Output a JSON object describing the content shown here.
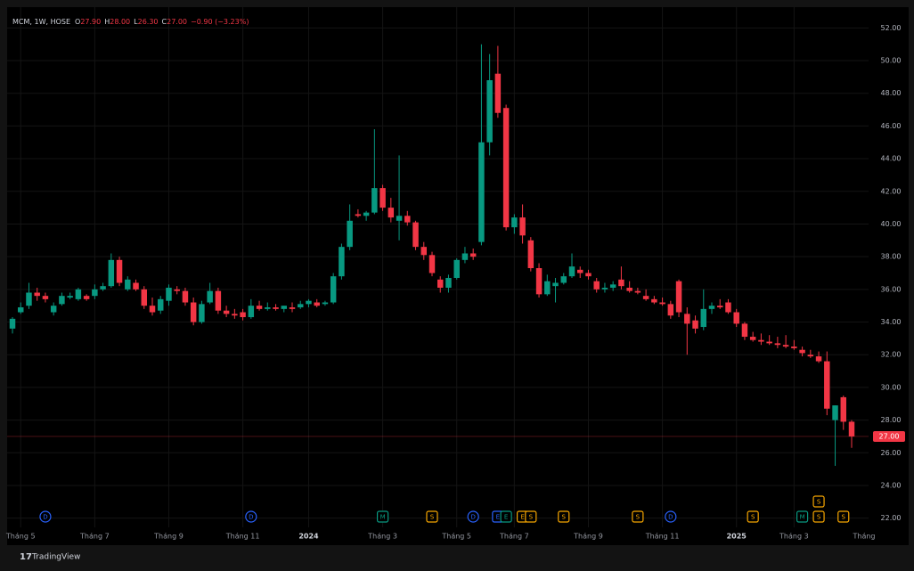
{
  "chart_data": {
    "type": "candlestick",
    "symbol": "MCM, 1W, HOSE",
    "legend_items": [
      {
        "key": "O",
        "text": "27.90"
      },
      {
        "key": "H",
        "text": "28.00"
      },
      {
        "key": "L",
        "text": "26.30"
      },
      {
        "key": "C",
        "text": "27.00"
      }
    ],
    "change": "−0.90 (−3.23%)",
    "categories": [
      null,
      "Tháng 5",
      null,
      null,
      null,
      null,
      null,
      null,
      null,
      null,
      "Tháng 7",
      null,
      null,
      null,
      null,
      null,
      null,
      null,
      null,
      "Tháng 9",
      null,
      null,
      null,
      null,
      null,
      null,
      null,
      null,
      "Tháng 11",
      null,
      null,
      null,
      null,
      null,
      null,
      null,
      "2024",
      null,
      null,
      null,
      null,
      null,
      null,
      null,
      null,
      "Tháng 3",
      null,
      null,
      null,
      null,
      null,
      null,
      null,
      null,
      "Tháng 5",
      null,
      null,
      null,
      null,
      null,
      null,
      "Tháng 7",
      null,
      null,
      null,
      null,
      null,
      null,
      null,
      null,
      "Tháng 9",
      null,
      null,
      null,
      null,
      null,
      null,
      null,
      null,
      "Tháng 11",
      null,
      null,
      null,
      null,
      null,
      null,
      null,
      null,
      "2025",
      null,
      null,
      null,
      null,
      null,
      null,
      "Tháng 3",
      null,
      null,
      null,
      null,
      null,
      null,
      null
    ],
    "truncated_label": "Tháng",
    "open": [
      33.6,
      34.6,
      35.0,
      35.8,
      35.6,
      34.6,
      35.1,
      35.5,
      35.4,
      35.6,
      35.6,
      36.0,
      36.2,
      37.8,
      36.0,
      36.4,
      36.0,
      35.0,
      34.7,
      35.3,
      36.0,
      35.9,
      35.2,
      34.0,
      35.2,
      35.9,
      34.7,
      34.5,
      34.6,
      34.3,
      35.0,
      34.8,
      34.9,
      34.8,
      34.9,
      34.9,
      35.1,
      35.2,
      35.1,
      35.2,
      36.8,
      38.6,
      40.6,
      40.5,
      40.7,
      42.2,
      41.0,
      40.2,
      40.5,
      40.1,
      38.6,
      38.1,
      36.6,
      36.1,
      36.7,
      37.8,
      38.2,
      38.9,
      45.0,
      49.2,
      47.1,
      39.8,
      40.4,
      39.0,
      37.3,
      35.7,
      36.2,
      36.4,
      36.8,
      37.2,
      37.0,
      36.5,
      36.0,
      36.1,
      36.6,
      36.1,
      35.9,
      35.6,
      35.4,
      35.2,
      35.1,
      36.5,
      34.5,
      34.1,
      33.7,
      34.8,
      35.0,
      35.2,
      34.6,
      33.9,
      33.1,
      32.9,
      32.8,
      32.7,
      32.6,
      32.5,
      32.3,
      32.0,
      31.9,
      31.6,
      28.0,
      29.4,
      27.9
    ],
    "high": [
      34.3,
      35.2,
      36.4,
      36.1,
      35.8,
      35.2,
      35.8,
      35.8,
      36.1,
      35.7,
      36.3,
      36.4,
      38.2,
      38.0,
      36.8,
      36.6,
      36.2,
      35.5,
      35.6,
      36.3,
      36.2,
      36.1,
      35.5,
      35.3,
      36.4,
      36.1,
      35.0,
      34.8,
      34.8,
      35.4,
      35.3,
      35.2,
      35.1,
      35.0,
      35.2,
      35.3,
      35.4,
      35.4,
      35.3,
      37.0,
      38.8,
      41.2,
      40.9,
      40.8,
      45.8,
      42.4,
      41.6,
      44.2,
      40.8,
      40.2,
      38.9,
      38.3,
      36.8,
      36.9,
      37.9,
      38.6,
      38.5,
      51.0,
      50.4,
      50.9,
      47.3,
      40.6,
      41.2,
      39.2,
      37.6,
      36.9,
      36.7,
      37.0,
      38.2,
      37.4,
      37.2,
      36.7,
      36.4,
      36.5,
      37.4,
      36.5,
      36.1,
      36.0,
      35.6,
      35.5,
      35.3,
      36.6,
      34.9,
      34.4,
      36.0,
      35.2,
      35.4,
      35.4,
      34.8,
      34.0,
      33.4,
      33.3,
      33.2,
      33.1,
      33.2,
      32.9,
      32.5,
      32.3,
      32.2,
      32.2,
      28.9,
      29.5,
      28.0
    ],
    "low": [
      33.3,
      34.5,
      34.8,
      35.3,
      35.2,
      34.4,
      35.0,
      35.4,
      35.3,
      35.3,
      35.4,
      35.9,
      36.1,
      36.2,
      35.9,
      35.9,
      34.8,
      34.4,
      34.5,
      35.0,
      35.7,
      35.0,
      33.8,
      33.9,
      35.1,
      34.5,
      34.3,
      34.2,
      34.1,
      34.2,
      34.7,
      34.7,
      34.7,
      34.6,
      34.6,
      34.8,
      34.9,
      34.9,
      35.0,
      35.1,
      36.6,
      38.4,
      40.4,
      40.2,
      40.6,
      40.8,
      40.1,
      39.0,
      39.9,
      38.4,
      37.8,
      36.8,
      35.8,
      35.8,
      36.6,
      37.6,
      37.8,
      38.7,
      44.2,
      46.5,
      39.6,
      39.4,
      38.8,
      37.1,
      35.5,
      35.6,
      35.2,
      36.3,
      36.7,
      36.7,
      36.6,
      35.8,
      35.8,
      35.9,
      36.0,
      35.8,
      35.7,
      35.3,
      35.1,
      35.0,
      34.2,
      34.3,
      32.0,
      33.3,
      33.5,
      34.5,
      34.8,
      34.5,
      33.7,
      32.9,
      32.8,
      32.6,
      32.6,
      32.4,
      32.4,
      32.3,
      31.9,
      31.8,
      31.5,
      28.3,
      25.2,
      27.4,
      26.3
    ],
    "close": [
      34.2,
      34.9,
      35.8,
      35.6,
      35.4,
      35.0,
      35.6,
      35.6,
      36.0,
      35.4,
      36.0,
      36.2,
      37.8,
      36.4,
      36.6,
      36.0,
      35.0,
      34.6,
      35.4,
      36.1,
      35.9,
      35.2,
      34.0,
      35.1,
      35.9,
      34.7,
      34.5,
      34.4,
      34.3,
      35.0,
      34.8,
      34.9,
      34.8,
      35.0,
      34.8,
      35.1,
      35.3,
      35.0,
      35.2,
      36.8,
      38.6,
      40.2,
      40.5,
      40.7,
      42.2,
      41.0,
      40.4,
      40.5,
      40.1,
      38.6,
      38.1,
      37.0,
      36.1,
      36.7,
      37.8,
      38.2,
      38.0,
      45.0,
      48.8,
      46.8,
      39.8,
      40.4,
      39.3,
      37.3,
      35.7,
      36.5,
      36.4,
      36.8,
      37.4,
      37.0,
      36.8,
      36.0,
      36.1,
      36.3,
      36.2,
      35.9,
      35.8,
      35.4,
      35.2,
      35.1,
      34.4,
      34.6,
      33.9,
      33.6,
      34.8,
      35.0,
      34.9,
      34.6,
      33.9,
      33.1,
      32.9,
      32.8,
      32.7,
      32.6,
      32.5,
      32.4,
      32.1,
      31.9,
      31.6,
      28.7,
      28.9,
      27.9,
      27.0
    ],
    "up_color": "#089981",
    "down_color": "#f23645",
    "ylim": [
      21,
      53
    ],
    "yticks": [
      {
        "value": 22,
        "label": "22.00"
      },
      {
        "value": 24,
        "label": "24.00"
      },
      {
        "value": 26,
        "label": "26.00"
      },
      {
        "value": 28,
        "label": "28.00"
      },
      {
        "value": 30,
        "label": "30.00"
      },
      {
        "value": 32,
        "label": "32.00"
      },
      {
        "value": 34,
        "label": "34.00"
      },
      {
        "value": 36,
        "label": "36.00"
      },
      {
        "value": 38,
        "label": "38.00"
      },
      {
        "value": 40,
        "label": "40.00"
      },
      {
        "value": 42,
        "label": "42.00"
      },
      {
        "value": 44,
        "label": "44.00"
      },
      {
        "value": 46,
        "label": "46.00"
      },
      {
        "value": 48,
        "label": "48.00"
      },
      {
        "value": 50,
        "label": "50.00"
      },
      {
        "value": 52,
        "label": "52.00"
      }
    ],
    "last_price": {
      "value": 27,
      "label": "27.00"
    },
    "grid": true,
    "events": [
      {
        "label": "D",
        "index": 4,
        "color": "#2962ff"
      },
      {
        "label": "D",
        "index": 29,
        "color": "#2962ff"
      },
      {
        "label": "M",
        "index": 45,
        "color": "#089981"
      },
      {
        "label": "S",
        "index": 51,
        "color": "#f7a600"
      },
      {
        "label": "D",
        "index": 56,
        "color": "#2962ff"
      },
      {
        "label": "E",
        "index": 59,
        "color": "#2962ff"
      },
      {
        "label": "E",
        "index": 60,
        "color": "#089981"
      },
      {
        "label": "E",
        "index": 62,
        "color": "#f7a600"
      },
      {
        "label": "S",
        "index": 63,
        "color": "#f7a600"
      },
      {
        "label": "S",
        "index": 67,
        "color": "#f7a600"
      },
      {
        "label": "S",
        "index": 76,
        "color": "#f7a600"
      },
      {
        "label": "D",
        "index": 80,
        "color": "#2962ff"
      },
      {
        "label": "S",
        "index": 90,
        "color": "#f7a600"
      },
      {
        "label": "M",
        "index": 96,
        "color": "#089981"
      },
      {
        "label": "S",
        "index": 98,
        "color": "#f7a600"
      },
      {
        "label": "S",
        "index": 98,
        "color": "#f7a600"
      },
      {
        "label": "S",
        "index": 101,
        "color": "#f7a600"
      }
    ]
  },
  "footer": {
    "brand": "TradingView"
  }
}
